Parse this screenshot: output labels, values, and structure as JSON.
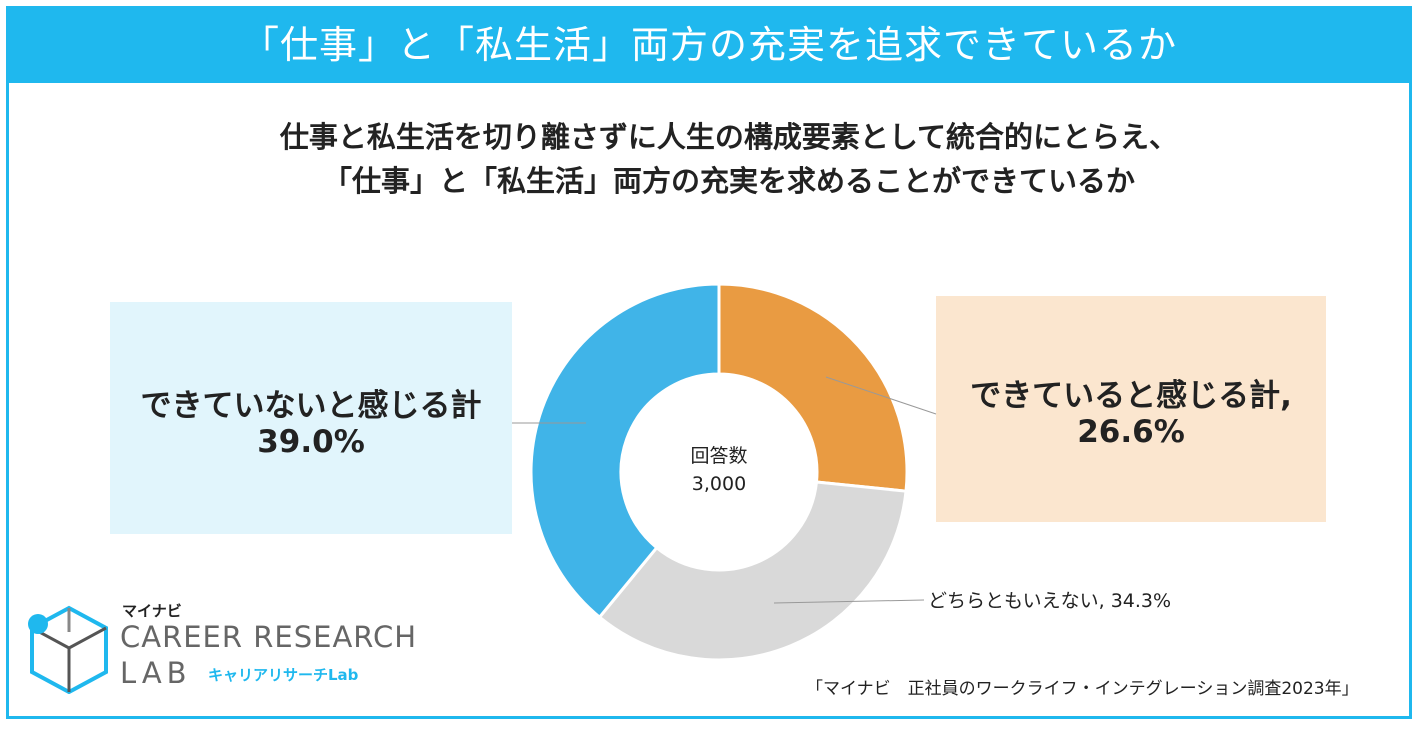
{
  "banner": {
    "title": "「仕事」と「私生活」両方の充実を追求できているか"
  },
  "heading": {
    "line1": "仕事と私生活を切り離さずに人生の構成要素として統合的にとらえ、",
    "line2": "「仕事」と「私生活」両方の充実を求めることができているか"
  },
  "chart_data": {
    "type": "pie",
    "center_label": "回答数",
    "center_value": "3,000",
    "slices": [
      {
        "label": "できていると感じる計,",
        "value": 26.6,
        "value_text": "26.6%",
        "color": "#e99b42"
      },
      {
        "label": "どちらともいえない,",
        "value": 34.3,
        "value_text": "34.3%",
        "color": "#d9d9d9"
      },
      {
        "label": "できていないと感じる計",
        "value": 39.0,
        "value_text": "39.0%",
        "color": "#40b4e8"
      }
    ]
  },
  "logo": {
    "brand_jp": "マイナビ",
    "line1": "CAREER RESEARCH",
    "line2": "LAB",
    "tagline": "キャリアリサーチLab"
  },
  "source": "「マイナビ　正社員のワークライフ・インテグレーション調査2023年」",
  "colors": {
    "accent": "#1fb8ee",
    "left_box": "#e1f5fc",
    "right_box": "#fbe6cf"
  }
}
